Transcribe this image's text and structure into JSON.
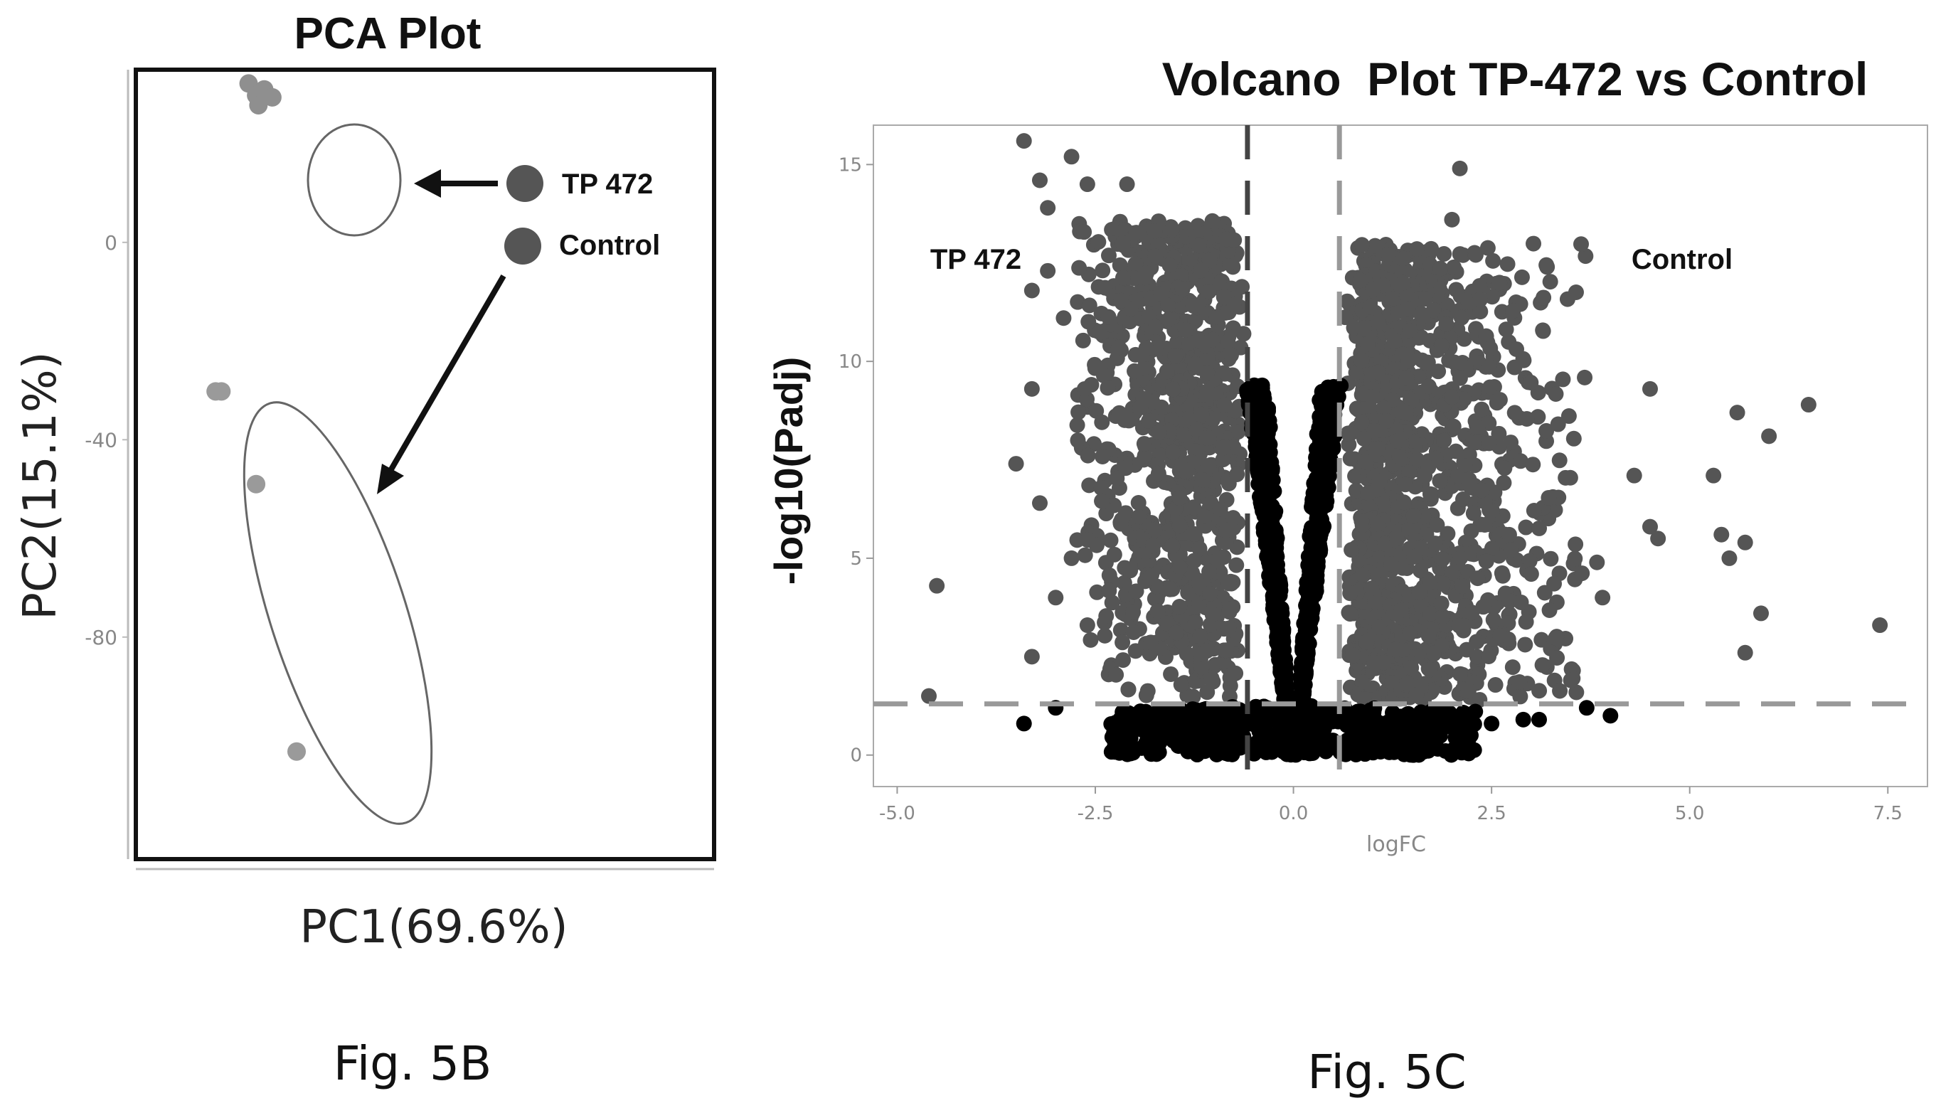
{
  "chart_data": [
    {
      "type": "scatter",
      "title": "PCA Plot",
      "xlabel": "PC1(69.6%)",
      "ylabel": "PC2(15.1%)",
      "ylim": [
        -125,
        35
      ],
      "xlim": [
        0,
        100
      ],
      "yticks": [
        "0",
        "-40",
        "-80"
      ],
      "legend": {
        "placement": "top-right",
        "entries": [
          "TP 472",
          "Control"
        ]
      },
      "series": [
        {
          "name": "TP 472",
          "x": [
            19.5,
            22.2,
            20.8,
            23.6,
            21.2
          ],
          "y": [
            32.2,
            31.0,
            29.8,
            29.4,
            27.8
          ]
        },
        {
          "name": "Control",
          "x": [
            13.8,
            14.8,
            20.8,
            27.8
          ],
          "y": [
            -30.2,
            -30.2,
            -49.0,
            -103.2
          ]
        }
      ],
      "caption": "Fig. 5B"
    },
    {
      "type": "scatter",
      "title": "Volcano  Plot TP-472 vs Control",
      "xlabel": "logFC",
      "ylabel": "-log10(Padj)",
      "xlim": [
        -5.3,
        8.0
      ],
      "ylim": [
        -0.8,
        16.0
      ],
      "xticks": [
        "-5.0",
        "-2.5",
        "0.0",
        "2.5",
        "5.0",
        "7.5"
      ],
      "yticks": [
        "0",
        "5",
        "10",
        "15"
      ],
      "thresholds": {
        "logFC": [
          -0.58,
          0.58
        ],
        "padj": 1.3
      },
      "annotations": [
        "TP 472",
        "Control"
      ],
      "colors": {
        "significant": "#555555",
        "not_significant": "#000000",
        "threshold": "#999999"
      },
      "highlight_points": [
        [
          -3.4,
          15.6
        ],
        [
          -2.8,
          15.2
        ],
        [
          -3.2,
          14.6
        ],
        [
          -2.6,
          14.5
        ],
        [
          -2.1,
          14.5
        ],
        [
          -3.1,
          13.9
        ],
        [
          -3.3,
          11.8
        ],
        [
          -3.1,
          12.3
        ],
        [
          -2.9,
          11.1
        ],
        [
          -3.3,
          9.3
        ],
        [
          -3.5,
          7.4
        ],
        [
          -3.2,
          6.4
        ],
        [
          -4.5,
          4.3
        ],
        [
          -3.0,
          4.0
        ],
        [
          -3.3,
          2.5
        ],
        [
          -4.6,
          1.5
        ],
        [
          -2.8,
          5.0
        ],
        [
          -2.6,
          3.3
        ],
        [
          2.1,
          14.9
        ],
        [
          2.0,
          13.6
        ],
        [
          2.6,
          12.0
        ],
        [
          3.2,
          12.4
        ],
        [
          4.5,
          9.3
        ],
        [
          5.6,
          8.7
        ],
        [
          6.5,
          8.9
        ],
        [
          6.0,
          8.1
        ],
        [
          5.3,
          7.1
        ],
        [
          4.3,
          7.1
        ],
        [
          4.5,
          5.8
        ],
        [
          5.4,
          5.6
        ],
        [
          5.7,
          5.4
        ],
        [
          4.6,
          5.5
        ],
        [
          5.5,
          5.0
        ],
        [
          5.9,
          3.6
        ],
        [
          7.4,
          3.3
        ],
        [
          5.7,
          2.6
        ],
        [
          3.5,
          1.9
        ],
        [
          3.0,
          4.6
        ],
        [
          3.9,
          4.0
        ]
      ],
      "black_points": [
        [
          -3.0,
          1.2
        ],
        [
          -3.4,
          0.8
        ],
        [
          -2.1,
          0.7
        ],
        [
          -1.6,
          0.9
        ],
        [
          -1.2,
          0.6
        ],
        [
          3.7,
          1.2
        ],
        [
          4.0,
          1.0
        ],
        [
          3.1,
          0.9
        ],
        [
          2.9,
          0.9
        ],
        [
          2.5,
          0.8
        ],
        [
          2.0,
          0.7
        ]
      ],
      "caption": "Fig. 5C"
    }
  ]
}
